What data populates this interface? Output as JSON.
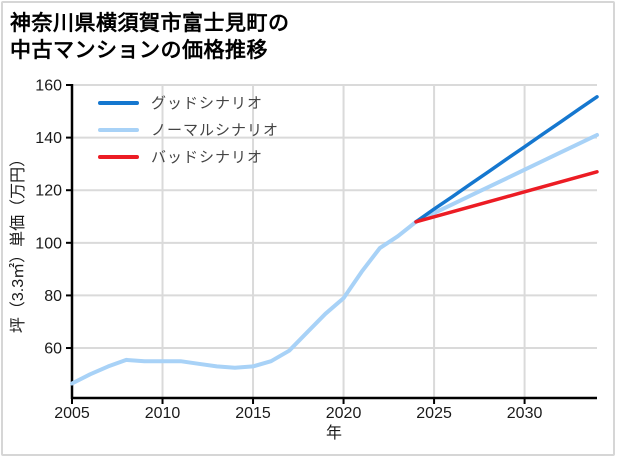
{
  "title_lines": [
    "神奈川県横須賀市富士見町の",
    "中古マンションの価格推移"
  ],
  "colors": {
    "good": "#1577cf",
    "normal": "#a8d2f7",
    "bad": "#ec1c24",
    "grid": "#dadada",
    "axis": "#000000",
    "tick_text": "#1a1a1a",
    "legend_text": "#444444",
    "card_border": "#d6d6d6",
    "background": "#ffffff"
  },
  "legend": {
    "items": [
      {
        "label": "グッドシナリオ",
        "color": "#1577cf"
      },
      {
        "label": "ノーマルシナリオ",
        "color": "#a8d2f7"
      },
      {
        "label": "バッドシナリオ",
        "color": "#ec1c24"
      }
    ]
  },
  "chart_data": {
    "type": "line",
    "title": "神奈川県横須賀市富士見町の中古マンションの価格推移",
    "xlabel": "年",
    "ylabel": "坪（3.3㎡）単価（万円）",
    "xlim": [
      2005,
      2034
    ],
    "ylim": [
      41,
      160
    ],
    "xticks": [
      2005,
      2010,
      2015,
      2020,
      2025,
      2030
    ],
    "yticks": [
      60,
      80,
      100,
      120,
      140,
      160
    ],
    "grid": true,
    "legend_position": "top-left-inside",
    "series": [
      {
        "name": "ノーマルシナリオ",
        "color": "#a8d2f7",
        "width": 4,
        "x": [
          2005,
          2006,
          2007,
          2008,
          2009,
          2010,
          2011,
          2012,
          2013,
          2014,
          2015,
          2016,
          2017,
          2018,
          2019,
          2020,
          2021,
          2022,
          2023,
          2024,
          2025,
          2026,
          2027,
          2028,
          2029,
          2030,
          2031,
          2032,
          2033,
          2034
        ],
        "values": [
          46.5,
          50,
          53,
          55.5,
          55,
          55,
          55,
          54,
          53,
          52.5,
          53,
          55,
          59,
          66,
          73,
          79,
          89,
          98,
          102.5,
          108,
          111.3,
          114.6,
          117.9,
          121.2,
          124.5,
          127.8,
          131.1,
          134.4,
          137.7,
          141
        ]
      },
      {
        "name": "グッドシナリオ",
        "color": "#1577cf",
        "width": 3.5,
        "x": [
          2024,
          2025,
          2026,
          2027,
          2028,
          2029,
          2030,
          2031,
          2032,
          2033,
          2034
        ],
        "values": [
          108,
          112.8,
          117.5,
          122.3,
          127,
          131.8,
          136.5,
          141.3,
          146,
          150.8,
          155.5
        ]
      },
      {
        "name": "バッドシナリオ",
        "color": "#ec1c24",
        "width": 3.5,
        "x": [
          2024,
          2025,
          2026,
          2027,
          2028,
          2029,
          2030,
          2031,
          2032,
          2033,
          2034
        ],
        "values": [
          108,
          109.9,
          111.8,
          113.7,
          115.6,
          117.5,
          119.4,
          121.3,
          123.2,
          125.1,
          127
        ]
      }
    ]
  }
}
